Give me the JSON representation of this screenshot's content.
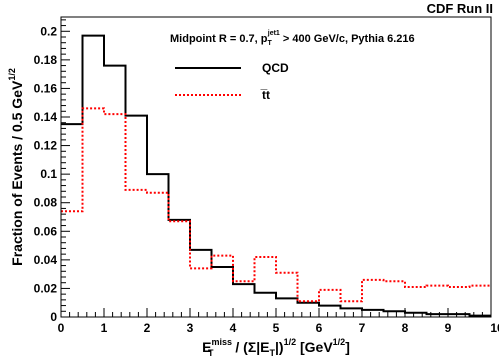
{
  "chart_data": {
    "type": "line",
    "step": true,
    "corner_label": "CDF Run II",
    "annotation": {
      "prefix": "Midpoint R = 0.7, p",
      "sub": "T",
      "sup": "jet1",
      "suffix": " > 400 GeV/c, Pythia 6.216"
    },
    "ylabel": "Fraction of Events / 0.5 GeV",
    "ylabel_sup": "1/2",
    "xlabel": {
      "a": "E",
      "a_sup": "miss",
      "a_sub": "T",
      "b": " / (Σ|E",
      "b_sub": "T",
      "c": "|)",
      "c_sup": "1/2",
      "d": " [GeV",
      "d_sup": "1/2",
      "e": "]"
    },
    "xlim": [
      0,
      10
    ],
    "ylim": [
      0,
      0.21
    ],
    "x_ticks": [
      "0",
      "1",
      "2",
      "3",
      "4",
      "5",
      "6",
      "7",
      "8",
      "9",
      "10"
    ],
    "y_ticks": [
      "0",
      "0.02",
      "0.04",
      "0.06",
      "0.08",
      "0.1",
      "0.12",
      "0.14",
      "0.16",
      "0.18",
      "0.2"
    ],
    "bin_edges": [
      0,
      0.5,
      1,
      1.5,
      2,
      2.5,
      3,
      3.5,
      4,
      4.5,
      5,
      5.5,
      6,
      6.5,
      7,
      7.5,
      8,
      8.5,
      9,
      9.5,
      10
    ],
    "series": [
      {
        "name": "QCD",
        "color": "#000000",
        "dash": "solid",
        "values": [
          0.135,
          0.197,
          0.176,
          0.141,
          0.1,
          0.068,
          0.047,
          0.035,
          0.023,
          0.017,
          0.013,
          0.01,
          0.008,
          0.006,
          0.005,
          0.004,
          0.003,
          0.002,
          0.002,
          0.001
        ]
      },
      {
        "name": "t̅t",
        "color": "#ff0000",
        "dash": "dotted",
        "values": [
          0.074,
          0.146,
          0.142,
          0.089,
          0.087,
          0.067,
          0.034,
          0.043,
          0.025,
          0.042,
          0.031,
          0.011,
          0.019,
          0.011,
          0.026,
          0.025,
          0.021,
          0.022,
          0.021,
          0.022
        ]
      }
    ]
  }
}
